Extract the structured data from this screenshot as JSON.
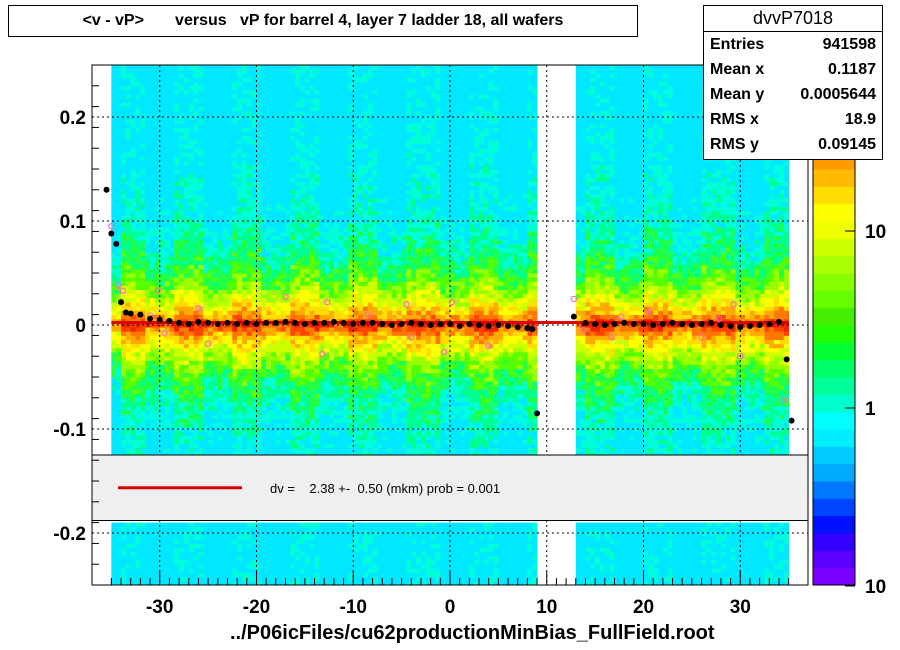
{
  "title": "<v - vP>       versus   vP for barrel 4, layer 7 ladder 18, all wafers",
  "stats": {
    "name": "dvvP7018",
    "rows": [
      {
        "label": "Entries",
        "value": "941598"
      },
      {
        "label": "Mean x",
        "value": "0.1187"
      },
      {
        "label": "Mean y",
        "value": "0.0005644"
      },
      {
        "label": "RMS x",
        "value": "18.9"
      },
      {
        "label": "RMS y",
        "value": "0.09145"
      }
    ]
  },
  "fit_legend": "dv =    2.38 +-  0.50 (mkm) prob = 0.001",
  "footer": "../P06icFiles/cu62productionMinBias_FullField.root",
  "colors": {
    "fit_line": "#dd0000",
    "profile_marker": "#000000",
    "alt_marker": "#ff66cc"
  },
  "chart_data": {
    "type": "heatmap",
    "xlim": [
      -37,
      37
    ],
    "ylim": [
      -0.25,
      0.25
    ],
    "x_ticks": [
      "-30",
      "-20",
      "-10",
      "0",
      "10",
      "20",
      "30"
    ],
    "y_ticks": [
      "-0.2",
      "-0.1",
      "0",
      "0.1",
      "0.2"
    ],
    "colorbar_labels": [
      "10",
      "1",
      "10"
    ],
    "colorbar_scale": "log",
    "grid": true,
    "gaps_x": [
      [
        9,
        13
      ]
    ],
    "fit_line": {
      "slope": 0,
      "intercept": 0.00238,
      "x_range": [
        -35,
        35
      ]
    },
    "profile": {
      "x": [
        -35.5,
        -35,
        -34.5,
        -34,
        -33.5,
        -33,
        -32,
        -31,
        -30,
        -29,
        -28,
        -27,
        -26,
        -25,
        -24,
        -23,
        -22,
        -21,
        -20,
        -19,
        -18,
        -17,
        -16,
        -15,
        -14,
        -13,
        -12,
        -11,
        -10,
        -9,
        -8,
        -7,
        -6,
        -5,
        -4,
        -3,
        -2,
        -1,
        0,
        1,
        2,
        3,
        4,
        5,
        6,
        7,
        8,
        8.5,
        9,
        12.8,
        14,
        15,
        16,
        17,
        18,
        19,
        20,
        21,
        22,
        23,
        24,
        25,
        26,
        27,
        28,
        29,
        30,
        31,
        32,
        33,
        34,
        34.8,
        35.3
      ],
      "y": [
        0.13,
        0.088,
        0.078,
        0.022,
        0.012,
        0.011,
        0.01,
        0.006,
        0.005,
        0.004,
        0.002,
        0.001,
        0.003,
        0.002,
        0.001,
        0.002,
        0.001,
        0.002,
        0.001,
        0.002,
        0.002,
        0.003,
        0.002,
        0.001,
        0.002,
        0.002,
        0.003,
        0.002,
        0.001,
        0.002,
        0.002,
        0.001,
        0.0,
        0.001,
        0.002,
        0.001,
        0.0,
        0.001,
        0.001,
        -0.001,
        0.001,
        0.0,
        -0.001,
        0.0,
        -0.001,
        -0.002,
        -0.003,
        -0.004,
        -0.085,
        0.008,
        0.002,
        0.001,
        0.0,
        0.001,
        0.002,
        0.001,
        0.001,
        0.0,
        0.001,
        0.002,
        0.001,
        0.0,
        0.001,
        0.002,
        0.0,
        -0.001,
        -0.002,
        -0.001,
        0.0,
        0.001,
        0.003,
        -0.033,
        -0.092
      ]
    },
    "outliers": {
      "x": [
        -35,
        -34.3,
        -33.8,
        -31,
        -30.2,
        -29.5,
        -26,
        -25,
        -17,
        -13.2,
        -12.7,
        -8.5,
        -4.5,
        -4,
        -0.6,
        0.2,
        4,
        12.8,
        13.8,
        16.7,
        17.7,
        20.5,
        26,
        27.8,
        29.3,
        30,
        34.5
      ],
      "y": [
        0.095,
        0.038,
        0.033,
        0.009,
        0.033,
        -0.008,
        0.016,
        -0.018,
        0.027,
        -0.028,
        0.022,
        0.01,
        0.02,
        -0.012,
        -0.026,
        0.022,
        -0.02,
        0.025,
        -0.005,
        -0.012,
        0.008,
        0.013,
        -0.012,
        0.006,
        0.02,
        -0.03,
        -0.072
      ]
    }
  }
}
